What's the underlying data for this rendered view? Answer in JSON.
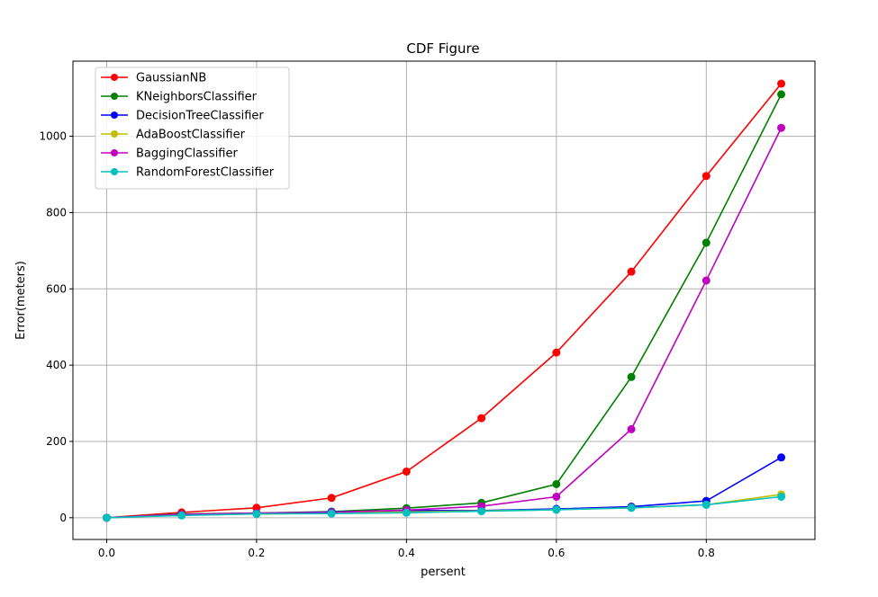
{
  "chart_data": {
    "type": "line",
    "title": "CDF Figure",
    "xlabel": "persent",
    "ylabel": "Error(meters)",
    "xlim": [
      -0.045,
      0.945
    ],
    "ylim": [
      -57,
      1197
    ],
    "xticks": [
      0.0,
      0.2,
      0.4,
      0.6,
      0.8
    ],
    "xtick_labels": [
      "0.0",
      "0.2",
      "0.4",
      "0.6",
      "0.8"
    ],
    "yticks": [
      0,
      200,
      400,
      600,
      800,
      1000
    ],
    "ytick_labels": [
      "0",
      "200",
      "400",
      "600",
      "800",
      "1000"
    ],
    "grid": true,
    "legend_position": "upper-left",
    "x": [
      0.0,
      0.1,
      0.2,
      0.3,
      0.4,
      0.5,
      0.6,
      0.7,
      0.8,
      0.9
    ],
    "series": [
      {
        "name": "GaussianNB",
        "color": "#ff0000",
        "values": [
          0,
          14,
          26,
          52,
          121,
          261,
          433,
          645,
          896,
          1138
        ]
      },
      {
        "name": "KNeighborsClassifier",
        "color": "#008000",
        "values": [
          0,
          10,
          12,
          16,
          25,
          39,
          88,
          369,
          721,
          1110
        ]
      },
      {
        "name": "DecisionTreeClassifier",
        "color": "#0000ff",
        "values": [
          0,
          8,
          11,
          15,
          19,
          19,
          23,
          29,
          44,
          158
        ]
      },
      {
        "name": "AdaBoostClassifier",
        "color": "#bfbf00",
        "values": [
          0,
          7,
          10,
          12,
          15,
          18,
          21,
          26,
          34,
          61
        ]
      },
      {
        "name": "BaggingClassifier",
        "color": "#bf00bf",
        "values": [
          0,
          9,
          12,
          14,
          20,
          30,
          55,
          232,
          622,
          1022
        ]
      },
      {
        "name": "RandomForestClassifier",
        "color": "#00bfbf",
        "values": [
          0,
          6,
          10,
          11,
          13,
          17,
          21,
          26,
          34,
          55
        ]
      }
    ]
  }
}
